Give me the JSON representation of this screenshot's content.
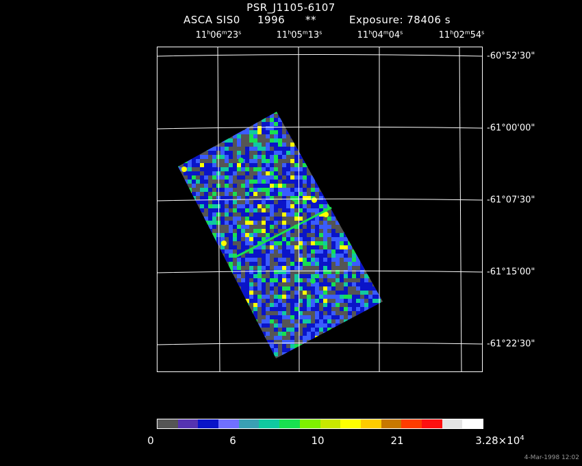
{
  "header": {
    "object": "PSR_J1105-6107",
    "instrument": "ASCA SIS0",
    "year": "1996",
    "stars": "**",
    "exposure": "Exposure: 78406 s"
  },
  "axes": {
    "ra_ticks": [
      {
        "h": "11",
        "m": "06",
        "s": "23"
      },
      {
        "h": "11",
        "m": "05",
        "s": "13"
      },
      {
        "h": "11",
        "m": "04",
        "s": "04"
      },
      {
        "h": "11",
        "m": "02",
        "s": "54"
      }
    ],
    "dec_ticks": [
      "-60°52'30\"",
      "-61°00'00\"",
      "-61°07'30\"",
      "-61°15'00\"",
      "-61°22'30\""
    ]
  },
  "colorbar": {
    "colors": [
      "#555555",
      "#5533b0",
      "#0a14c8",
      "#7070ff",
      "#3aa0b4",
      "#10c9a0",
      "#18e050",
      "#7ef000",
      "#c8e800",
      "#ffff00",
      "#ffcc00",
      "#c87800",
      "#ff3c00",
      "#ff1010",
      "#e4e4e4",
      "#ffffff"
    ],
    "labels": [
      "0",
      "6",
      "10",
      "21"
    ],
    "max_label_base": "3.28×10",
    "max_label_exp": "4"
  },
  "image_colors": {
    "background": "#555555",
    "low": "#0a14c8",
    "mid": "#3a5cff",
    "teal": "#10c9a0",
    "green": "#18e050",
    "yellow": "#ffff00",
    "red": "#ff3c00"
  },
  "timestamp": "4-Mar-1998 12:02"
}
